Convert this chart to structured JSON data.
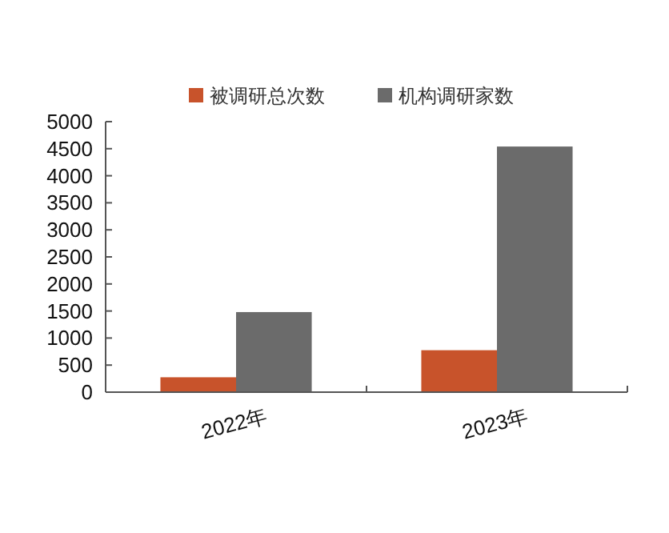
{
  "chart_data": {
    "type": "bar",
    "categories": [
      "2022年",
      "2023年"
    ],
    "series": [
      {
        "name": "被调研总次数",
        "color": "#c8532b",
        "values": [
          275,
          775
        ]
      },
      {
        "name": "机构调研家数",
        "color": "#6b6b6b",
        "values": [
          1480,
          4540
        ]
      }
    ],
    "ylim": [
      0,
      5000
    ],
    "yticks": [
      0,
      500,
      1000,
      1500,
      2000,
      2500,
      3000,
      3500,
      4000,
      4500,
      5000
    ],
    "grid": false,
    "legend": "top"
  }
}
